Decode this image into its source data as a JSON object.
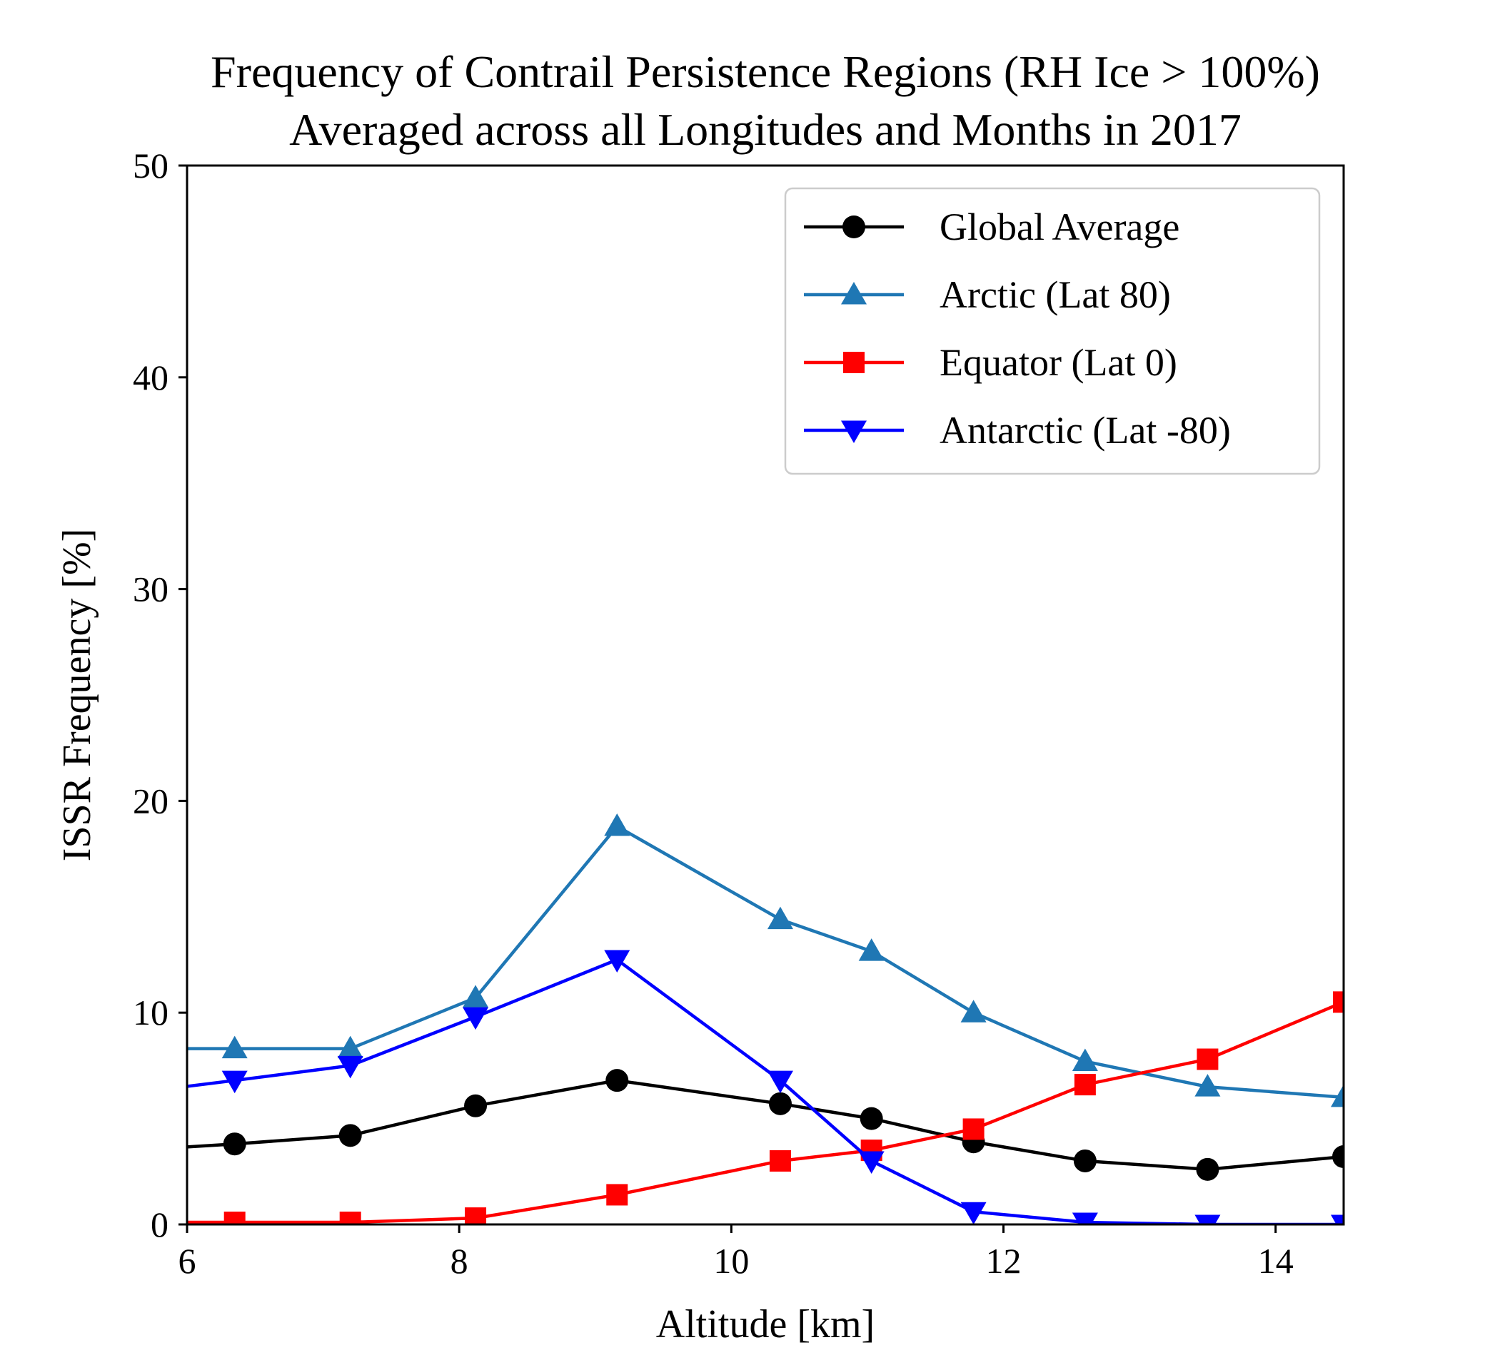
{
  "chart_data": {
    "type": "line",
    "title": "Frequency of Contrail Persistence Regions (RH Ice > 100%)",
    "subtitle": "Averaged across all Longitudes and Months in 2017",
    "xlabel": "Altitude [km]",
    "ylabel": "ISSR Frequency [%]",
    "xlim": [
      6,
      14.5
    ],
    "ylim": [
      0,
      50
    ],
    "xticks": [
      6,
      8,
      10,
      12,
      14
    ],
    "yticks": [
      0,
      10,
      20,
      30,
      40,
      50
    ],
    "grid": false,
    "legend_position": "upper-right",
    "x": [
      5.85,
      6.35,
      7.2,
      8.12,
      9.16,
      10.36,
      11.03,
      11.78,
      12.6,
      13.5,
      14.5
    ],
    "series": [
      {
        "name": "Global Average",
        "color": "#000000",
        "marker": "circle",
        "values": [
          3.6,
          3.8,
          4.2,
          5.6,
          6.8,
          5.7,
          5.0,
          3.9,
          3.0,
          2.6,
          3.2
        ]
      },
      {
        "name": "Arctic (Lat 80)",
        "color": "#1f77b4",
        "marker": "triangle-up",
        "values": [
          8.3,
          8.3,
          8.3,
          10.7,
          18.8,
          14.4,
          12.9,
          10.0,
          7.7,
          6.5,
          6.0
        ]
      },
      {
        "name": "Equator (Lat 0)",
        "color": "#ff0000",
        "marker": "square",
        "values": [
          0.1,
          0.1,
          0.1,
          0.3,
          1.4,
          3.0,
          3.5,
          4.5,
          6.6,
          7.8,
          10.5
        ]
      },
      {
        "name": "Antarctic (Lat -80)",
        "color": "#0000ff",
        "marker": "triangle-down",
        "values": [
          6.4,
          6.8,
          7.5,
          9.8,
          12.5,
          6.8,
          3.0,
          0.6,
          0.1,
          0.0,
          0.0
        ]
      }
    ]
  }
}
